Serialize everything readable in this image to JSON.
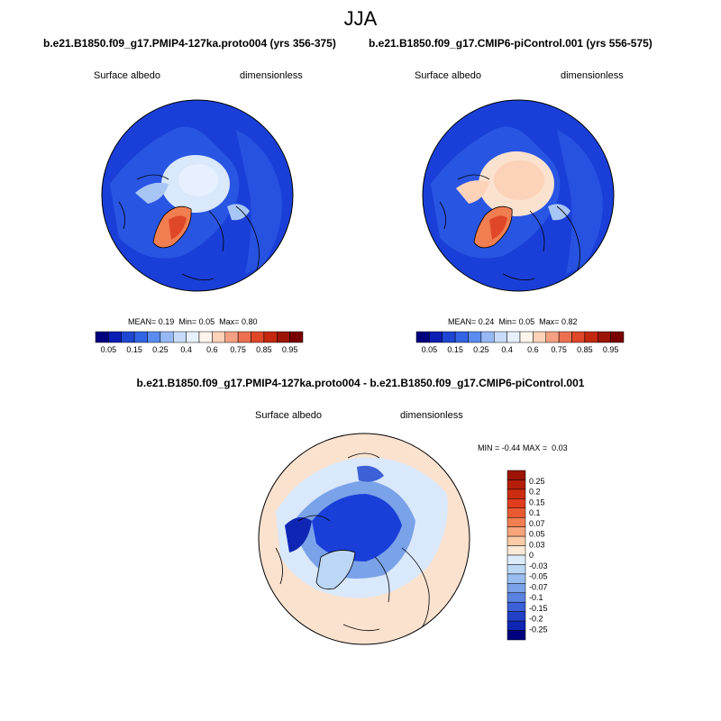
{
  "title": "JJA",
  "panels": [
    {
      "title": "b.e21.B1850.f09_g17.PMIP4-127ka.proto004 (yrs 356-375)",
      "variable": "Surface albedo",
      "units": "dimensionless",
      "stats": {
        "mean_label": "MEAN=",
        "mean": "0.19",
        "min_label": "Min=",
        "min": "0.05",
        "max_label": "Max=",
        "max": "0.80"
      }
    },
    {
      "title": "b.e21.B1850.f09_g17.CMIP6-piControl.001 (yrs 556-575)",
      "variable": "Surface albedo",
      "units": "dimensionless",
      "stats": {
        "mean_label": "MEAN=",
        "mean": "0.24",
        "min_label": "Min=",
        "min": "0.05",
        "max_label": "Max=",
        "max": "0.82"
      }
    }
  ],
  "colorbar_top": {
    "labels": [
      "0.05",
      "0.15",
      "0.25",
      "0.4",
      "0.6",
      "0.75",
      "0.85",
      "0.95"
    ],
    "colors": [
      "#00007f",
      "#0a1eb4",
      "#1e46d2",
      "#3264e6",
      "#5a8cf0",
      "#96b9f5",
      "#c8dcfa",
      "#e6f0ff",
      "#fff5ec",
      "#fcd2b9",
      "#f5a082",
      "#ec7050",
      "#e04628",
      "#c4280f",
      "#9b1405",
      "#780000"
    ]
  },
  "difference": {
    "title": "b.e21.B1850.f09_g17.PMIP4-127ka.proto004 - b.e21.B1850.f09_g17.CMIP6-piControl.001",
    "variable": "Surface albedo",
    "units": "dimensionless",
    "stats": {
      "min_label": "MIN =",
      "min": "-0.44",
      "max_label": "MAX =",
      "max": "0.03"
    },
    "colorbar": {
      "labels": [
        "0.25",
        "0.2",
        "0.15",
        "0.1",
        "0.07",
        "0.05",
        "0.03",
        "0",
        "-0.03",
        "-0.05",
        "-0.07",
        "-0.1",
        "-0.15",
        "-0.2",
        "-0.25"
      ],
      "colors": [
        "#9b1405",
        "#b41e0a",
        "#cc2c12",
        "#e03c1e",
        "#ea5a32",
        "#f07e50",
        "#f6a47a",
        "#fbcaa6",
        "#fbe8d6",
        "#dcebfa",
        "#bcd6f5",
        "#99bdef",
        "#7aa2e8",
        "#5a82e0",
        "#3c60d6",
        "#2241c8",
        "#0f26b4",
        "#00007f"
      ]
    }
  },
  "colors": {
    "ocean_blue": "#1a3fd8",
    "land_blue": "#2d5be6",
    "light_blue": "#a8c6f5",
    "pale_blue": "#d9e8fb",
    "pale_orange": "#fbe2cf",
    "orange": "#f07e50",
    "red": "#e04628",
    "coast": "#000000"
  }
}
